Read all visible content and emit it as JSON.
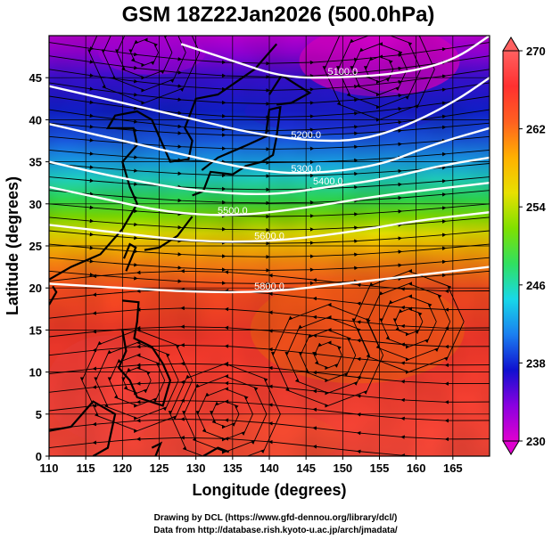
{
  "chart_data": {
    "type": "heatmap",
    "title": "GSM 18Z22Jan2026 (500.0hPa)",
    "xlabel": "Longitude (degrees)",
    "ylabel": "Latitude  (degrees)",
    "xlim": [
      110,
      170
    ],
    "ylim": [
      0,
      50
    ],
    "x_ticks": [
      110,
      115,
      120,
      125,
      130,
      135,
      140,
      145,
      150,
      155,
      160,
      165
    ],
    "y_ticks": [
      0,
      5,
      10,
      15,
      20,
      25,
      30,
      35,
      40,
      45
    ],
    "grid": true,
    "colorbar": {
      "range": [
        230,
        270
      ],
      "ticks": [
        230,
        238,
        246,
        254,
        262,
        270
      ],
      "colors": [
        "#e000d0",
        "#8a00e0",
        "#1010d0",
        "#1a7ff0",
        "#18d8e8",
        "#30e060",
        "#80e000",
        "#e8e000",
        "#ffb000",
        "#ff6020",
        "#ff3030",
        "#ff6060"
      ]
    },
    "contours": [
      {
        "label": "5100.0",
        "points": [
          [
            128,
            49
          ],
          [
            135,
            47
          ],
          [
            142,
            45
          ],
          [
            150,
            45
          ],
          [
            158,
            45.5
          ],
          [
            165,
            47
          ],
          [
            170,
            50
          ]
        ]
      },
      {
        "label": "5200.0",
        "points": [
          [
            110,
            44
          ],
          [
            120,
            42
          ],
          [
            130,
            40
          ],
          [
            137,
            38.5
          ],
          [
            145,
            37.5
          ],
          [
            152,
            37.5
          ],
          [
            158,
            39
          ],
          [
            165,
            42
          ],
          [
            170,
            45
          ]
        ]
      },
      {
        "label": "5300.0",
        "points": [
          [
            110,
            39.5
          ],
          [
            120,
            37.5
          ],
          [
            130,
            35.5
          ],
          [
            138,
            34
          ],
          [
            145,
            33.5
          ],
          [
            155,
            34.5
          ],
          [
            162,
            37
          ],
          [
            170,
            39
          ]
        ]
      },
      {
        "label": "5400.0",
        "points": [
          [
            110,
            35
          ],
          [
            120,
            33
          ],
          [
            130,
            31.5
          ],
          [
            140,
            31
          ],
          [
            148,
            32
          ],
          [
            156,
            33
          ],
          [
            163,
            34.5
          ],
          [
            170,
            35.5
          ]
        ]
      },
      {
        "label": "5500.0",
        "points": [
          [
            110,
            32
          ],
          [
            118,
            30.5
          ],
          [
            126,
            29
          ],
          [
            135,
            28.5
          ],
          [
            145,
            29.5
          ],
          [
            155,
            31
          ],
          [
            170,
            32.5
          ]
        ]
      },
      {
        "label": "5600.0",
        "points": [
          [
            110,
            27.5
          ],
          [
            120,
            26.5
          ],
          [
            130,
            25.5
          ],
          [
            140,
            25.5
          ],
          [
            150,
            26.5
          ],
          [
            160,
            28
          ],
          [
            170,
            29
          ]
        ]
      },
      {
        "label": "5800.0",
        "points": [
          [
            110,
            20.5
          ],
          [
            120,
            20
          ],
          [
            130,
            19.5
          ],
          [
            140,
            19.5
          ],
          [
            150,
            20.5
          ],
          [
            160,
            21.5
          ],
          [
            170,
            22.5
          ]
        ]
      }
    ],
    "vortices": [
      {
        "name": "anticyclone",
        "lon": 159,
        "lat": 16
      },
      {
        "name": "anticyclone",
        "lon": 148,
        "lat": 12
      },
      {
        "name": "anticyclone",
        "lon": 122,
        "lat": 9
      },
      {
        "name": "anticyclone",
        "lon": 134,
        "lat": 5
      },
      {
        "name": "cyclone",
        "lon": 155,
        "lat": 46
      },
      {
        "name": "cyclone",
        "lon": 123,
        "lat": 48
      }
    ]
  },
  "credits": {
    "line1": "Drawing by DCL (https://www.gfd-dennou.org/library/dcl/)",
    "line2": "Data from http://database.rish.kyoto-u.ac.jp/arch/jmadata/"
  }
}
